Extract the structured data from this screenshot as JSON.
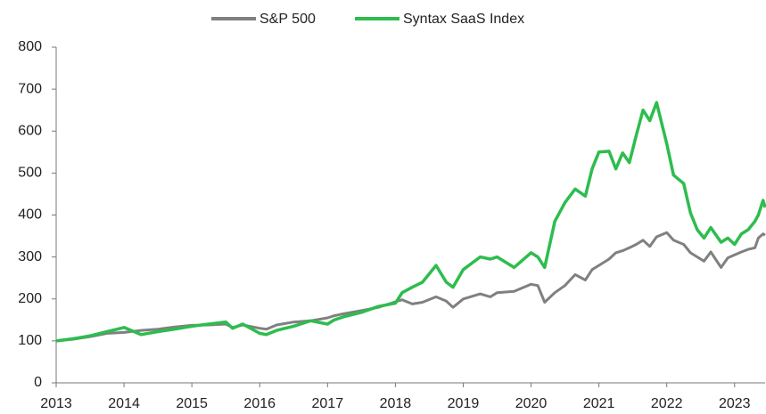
{
  "chart_data": {
    "type": "line",
    "x": [
      2013.0,
      2013.25,
      2013.5,
      2013.75,
      2014.0,
      2014.25,
      2014.5,
      2014.75,
      2015.0,
      2015.25,
      2015.5,
      2015.6,
      2015.75,
      2016.0,
      2016.1,
      2016.25,
      2016.5,
      2016.75,
      2017.0,
      2017.1,
      2017.25,
      2017.5,
      2017.75,
      2018.0,
      2018.1,
      2018.25,
      2018.4,
      2018.6,
      2018.75,
      2018.85,
      2019.0,
      2019.25,
      2019.4,
      2019.5,
      2019.75,
      2020.0,
      2020.1,
      2020.2,
      2020.35,
      2020.5,
      2020.65,
      2020.8,
      2020.9,
      2021.0,
      2021.15,
      2021.25,
      2021.35,
      2021.45,
      2021.55,
      2021.65,
      2021.75,
      2021.85,
      2022.0,
      2022.1,
      2022.25,
      2022.35,
      2022.45,
      2022.55,
      2022.65,
      2022.8,
      2022.9,
      2023.0,
      2023.1,
      2023.2,
      2023.3,
      2023.35,
      2023.42,
      2023.45
    ],
    "series": [
      {
        "name": "S&P 500",
        "color": "#808080",
        "values": [
          100,
          104,
          110,
          118,
          120,
          125,
          128,
          133,
          137,
          138,
          140,
          132,
          138,
          130,
          128,
          138,
          145,
          148,
          155,
          160,
          165,
          172,
          180,
          193,
          198,
          188,
          192,
          205,
          195,
          180,
          200,
          212,
          205,
          215,
          218,
          235,
          232,
          192,
          215,
          232,
          258,
          245,
          270,
          280,
          295,
          310,
          315,
          322,
          330,
          340,
          325,
          348,
          358,
          340,
          330,
          310,
          300,
          290,
          312,
          275,
          298,
          305,
          312,
          318,
          322,
          345,
          355,
          352
        ]
      },
      {
        "name": "Syntax SaaS Index",
        "color": "#2dbd4e",
        "values": [
          100,
          105,
          112,
          122,
          132,
          115,
          122,
          128,
          135,
          140,
          145,
          130,
          140,
          118,
          115,
          125,
          135,
          148,
          140,
          150,
          158,
          168,
          182,
          190,
          215,
          228,
          240,
          280,
          240,
          228,
          270,
          300,
          295,
          300,
          275,
          310,
          300,
          275,
          385,
          430,
          462,
          445,
          510,
          550,
          552,
          510,
          548,
          525,
          590,
          650,
          625,
          668,
          570,
          495,
          475,
          405,
          365,
          345,
          370,
          335,
          345,
          330,
          355,
          365,
          385,
          400,
          435,
          418
        ]
      }
    ],
    "xlim": [
      2013,
      2023.45
    ],
    "xticks": [
      2013,
      2014,
      2015,
      2016,
      2017,
      2018,
      2019,
      2020,
      2021,
      2022,
      2023
    ],
    "ylim": [
      0,
      800
    ],
    "yticks": [
      0,
      100,
      200,
      300,
      400,
      500,
      600,
      700,
      800
    ],
    "grid": false,
    "legend": "top"
  }
}
